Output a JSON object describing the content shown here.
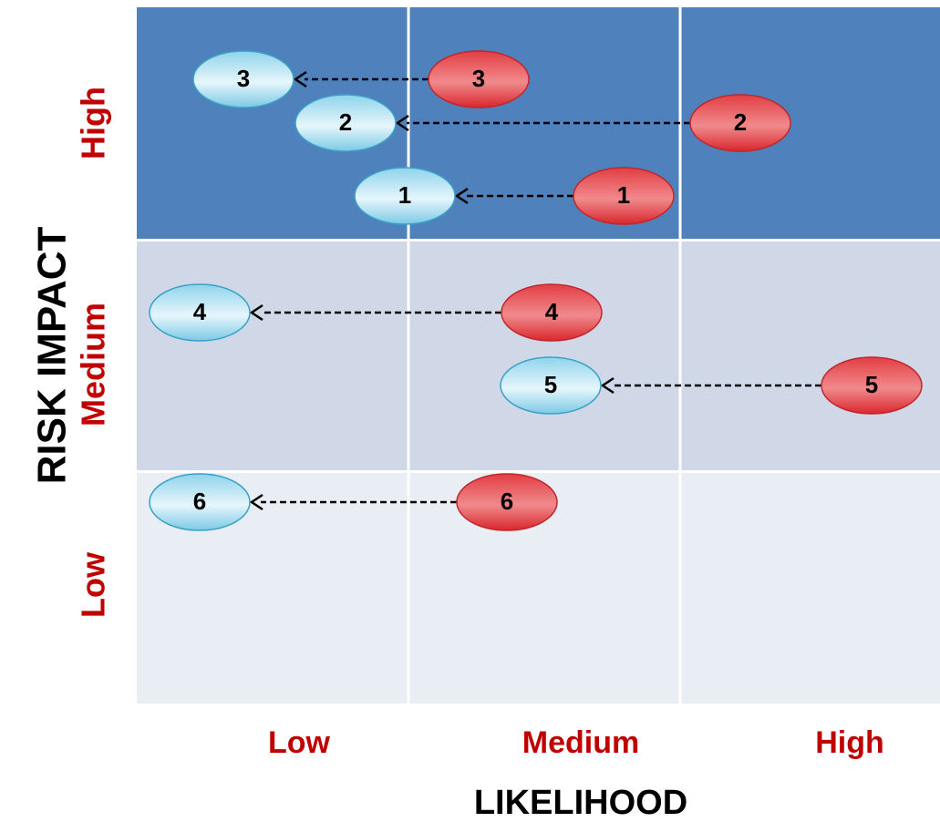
{
  "axes": {
    "y_title": "RISK IMPACT",
    "x_title": "LIKELIHOOD",
    "y_levels": [
      "High",
      "Medium",
      "Low"
    ],
    "x_levels": [
      "Low",
      "Medium",
      "High"
    ]
  },
  "colors": {
    "band_high": "#4f81bd",
    "band_medium": "#d0d8e8",
    "band_low": "#e9edf4",
    "level_label": "#c00000",
    "axis_title": "#000000",
    "before_fill": "#e0464a",
    "before_stroke": "#c0272d",
    "after_fill": "#a8dbee",
    "after_stroke": "#3aa1c4",
    "grid_line": "#ffffff"
  },
  "legend_semantics": {
    "before_marker": "red ellipse",
    "after_marker": "light blue ellipse"
  },
  "risks": [
    {
      "id": "3",
      "impact": "High",
      "before_likelihood": "Medium",
      "after_likelihood": "Low"
    },
    {
      "id": "2",
      "impact": "High",
      "before_likelihood": "High",
      "after_likelihood": "Low"
    },
    {
      "id": "1",
      "impact": "High",
      "before_likelihood": "Medium",
      "after_likelihood": "Medium"
    },
    {
      "id": "4",
      "impact": "Medium",
      "before_likelihood": "Medium",
      "after_likelihood": "Low"
    },
    {
      "id": "5",
      "impact": "Medium",
      "before_likelihood": "High",
      "after_likelihood": "Medium"
    },
    {
      "id": "6",
      "impact": "Low",
      "before_likelihood": "Medium",
      "after_likelihood": "Low"
    }
  ]
}
